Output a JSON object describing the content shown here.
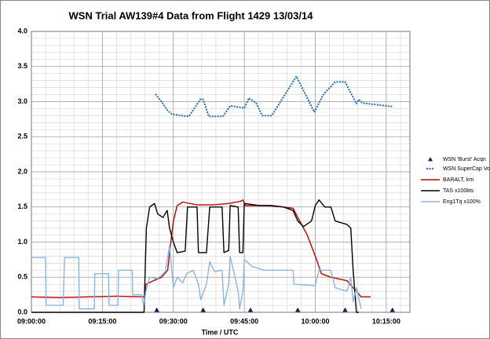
{
  "chart_data": {
    "type": "line",
    "title": "WSN Trial AW139#4 Data from Flight 1429 13/03/14",
    "x_label": "Time / UTC",
    "xlim": [
      0,
      80
    ],
    "xticks": [
      {
        "value": 0,
        "label": "09:00:00"
      },
      {
        "value": 15,
        "label": "09:15:00"
      },
      {
        "value": 30,
        "label": "09:30:00"
      },
      {
        "value": 45,
        "label": "09:45:00"
      },
      {
        "value": 60,
        "label": "10:00:00"
      },
      {
        "value": 75,
        "label": "10:15:00"
      }
    ],
    "minor_xticks": [
      3,
      6,
      9,
      12,
      18,
      21,
      24,
      27,
      33,
      36,
      39,
      42,
      48,
      51,
      54,
      57,
      63,
      66,
      69,
      72,
      78
    ],
    "ylim": [
      0,
      4
    ],
    "yticks": [
      {
        "value": 0,
        "label": "0.0"
      },
      0.5,
      {
        "value": 1,
        "label": "1.0"
      },
      1.5,
      {
        "value": 2,
        "label": "2.0"
      },
      2.5,
      {
        "value": 3,
        "label": "3.0"
      },
      3.5,
      {
        "value": 4,
        "label": "4.0"
      }
    ],
    "minor_yticks": [
      0.1,
      0.2,
      0.3,
      0.4,
      0.6,
      0.7,
      0.8,
      0.9,
      1.1,
      1.2,
      1.3,
      1.4,
      1.6,
      1.7,
      1.8,
      1.9,
      2.1,
      2.2,
      2.3,
      2.4,
      2.6,
      2.7,
      2.8,
      2.9,
      3.1,
      3.2,
      3.3,
      3.4,
      3.6,
      3.7,
      3.8,
      3.9
    ],
    "grid": true,
    "legend": "right",
    "series": [
      {
        "name": "WSN 'Burst' Acqn",
        "color": "#1f1a5e",
        "style": "triangle",
        "x": [
          26.5,
          36.3,
          46.3,
          56.3,
          66.3,
          76.3
        ],
        "values": [
          0,
          0,
          0,
          0,
          0,
          0
        ]
      },
      {
        "name": "WSN SuperCap Volts",
        "color": "#2e75b6",
        "style": "dots",
        "x": [
          26.3,
          27.5,
          28.7,
          29.7,
          31.7,
          33.3,
          35.8,
          36.3,
          37.5,
          40.5,
          42,
          45,
          46,
          47.5,
          48.8,
          50.8,
          56,
          59.8,
          61.7,
          64.2,
          66.3,
          68.7,
          69.2,
          70,
          76.2
        ],
        "values": [
          3.1,
          3.0,
          2.88,
          2.82,
          2.8,
          2.79,
          3.04,
          3.03,
          2.79,
          2.79,
          2.94,
          2.91,
          3.05,
          2.98,
          2.8,
          2.8,
          3.36,
          2.85,
          3.1,
          3.28,
          3.28,
          2.97,
          3.03,
          2.98,
          2.93
        ]
      },
      {
        "name": "BARALT, km",
        "color": "#c00000",
        "style": "line",
        "x": [
          0,
          6,
          12,
          18,
          24,
          24.2,
          25.8,
          27.5,
          28.8,
          29.3,
          30,
          30.8,
          32,
          35,
          38.3,
          41.7,
          44.2,
          44.7,
          45.3,
          50,
          53.3,
          55.3,
          56.7,
          58.3,
          60,
          61.3,
          63.3,
          66.7,
          68,
          68.7,
          69.7,
          71.7
        ],
        "values": [
          0.22,
          0.21,
          0.22,
          0.23,
          0.22,
          0.4,
          0.45,
          0.5,
          0.6,
          0.9,
          1.3,
          1.52,
          1.57,
          1.53,
          1.53,
          1.55,
          1.58,
          1.6,
          1.52,
          1.52,
          1.5,
          1.48,
          1.3,
          1.1,
          0.8,
          0.55,
          0.5,
          0.45,
          0.35,
          0.3,
          0.22,
          0.22
        ]
      },
      {
        "name": "TAS x100kts",
        "color": "#000000",
        "style": "line",
        "x": [
          0,
          23.8,
          24.3,
          25,
          26,
          26.7,
          27.8,
          28.7,
          29.2,
          30,
          30.8,
          32.5,
          33,
          35,
          35.3,
          37,
          37.7,
          40.3,
          40.7,
          41.7,
          42,
          43.7,
          44,
          44.7,
          45,
          48.3,
          50.8,
          53.3,
          55.3,
          56.3,
          57.5,
          59.2,
          60,
          60.8,
          62,
          63.3,
          64.2,
          66.7,
          67.5,
          68,
          68.7,
          69.2
        ],
        "values": [
          0,
          0,
          1.2,
          1.5,
          1.55,
          1.4,
          1.35,
          1.45,
          1.2,
          1.0,
          0.85,
          0.87,
          1.5,
          1.5,
          0.85,
          0.85,
          1.5,
          1.5,
          0.85,
          0.88,
          1.52,
          1.5,
          0.85,
          0.85,
          1.55,
          1.52,
          1.52,
          1.5,
          1.45,
          1.3,
          1.22,
          1.3,
          1.52,
          1.6,
          1.5,
          1.5,
          1.3,
          1.25,
          1.2,
          0.6,
          0,
          0
        ]
      },
      {
        "name": "Eng1Tq x100%",
        "color": "#8db4e2",
        "style": "line",
        "x": [
          0,
          3,
          3.1,
          6.7,
          7,
          10,
          10.1,
          13.3,
          13.4,
          16.3,
          16.4,
          18.3,
          18.4,
          21.3,
          21.4,
          23.3,
          23.7,
          24.2,
          25,
          26.7,
          28.3,
          29.2,
          30,
          30.8,
          32,
          32.8,
          34.2,
          35.3,
          35.8,
          37,
          37.7,
          38.7,
          40.3,
          40.7,
          41.7,
          42,
          43.7,
          44,
          44.7,
          45,
          46.7,
          49.2,
          55.3,
          55.5,
          60,
          60.8,
          63.3,
          64.2,
          66.7,
          67.5,
          68,
          68.7,
          69.7
        ],
        "values": [
          0.78,
          0.78,
          0.1,
          0.1,
          0.78,
          0.78,
          0.05,
          0.05,
          0.55,
          0.55,
          0.1,
          0.1,
          0.6,
          0.6,
          0.25,
          0.25,
          0.1,
          0.3,
          0.5,
          0.48,
          0.58,
          0.95,
          0.35,
          0.5,
          0.42,
          0.55,
          0.6,
          0.4,
          0.18,
          0.4,
          0.72,
          0.58,
          0.6,
          0.1,
          0.4,
          0.8,
          0.3,
          0.05,
          0.3,
          0.75,
          0.65,
          0.6,
          0.6,
          0.4,
          0.38,
          0.6,
          0.6,
          0.35,
          0.3,
          0.5,
          0.15,
          0.35,
          0.05
        ]
      }
    ]
  }
}
